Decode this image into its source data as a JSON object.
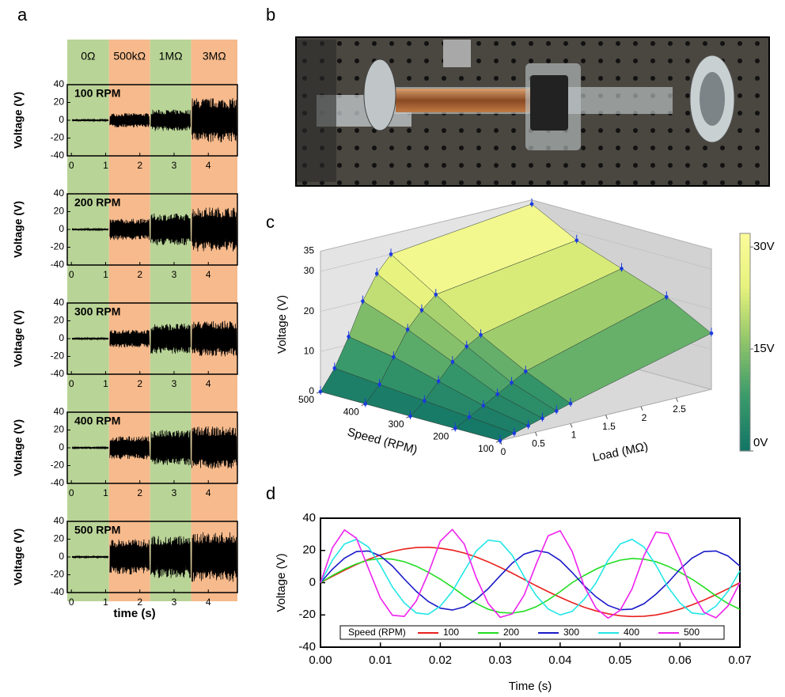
{
  "panel_labels": [
    "a",
    "b",
    "c",
    "d"
  ],
  "chart_data": [
    {
      "type": "signal-grid",
      "region_labels": [
        "0Ω",
        "500kΩ",
        "1MΩ",
        "3MΩ"
      ],
      "region_edges": [
        -0.12,
        1.1,
        2.3,
        3.5,
        4.85
      ],
      "xlim": [
        -0.12,
        4.85
      ],
      "xticks": [
        0,
        1,
        2,
        3,
        4
      ],
      "ylim": [
        -40,
        40
      ],
      "yticks": [
        -40,
        -20,
        0,
        20,
        40
      ],
      "ylabel": "Voltage (V)",
      "xlabel": "time (s)",
      "region_colors": [
        "#b9d497",
        "#f6ba8c"
      ],
      "rows": [
        {
          "label": "100 RPM",
          "values": [
            1,
            8,
            12,
            25
          ]
        },
        {
          "label": "200 RPM",
          "values": [
            1,
            12,
            18,
            25
          ]
        },
        {
          "label": "300 RPM",
          "values": [
            1,
            10,
            17,
            20
          ]
        },
        {
          "label": "400 RPM",
          "values": [
            1,
            13,
            20,
            24
          ]
        },
        {
          "label": "500 RPM",
          "values": [
            1,
            20,
            24,
            28
          ]
        }
      ]
    },
    {
      "type": "surface3d",
      "loads": [
        0,
        0.2,
        0.4,
        0.6,
        0.8,
        1,
        3
      ],
      "speeds": [
        100,
        200,
        300,
        400,
        500
      ],
      "values": [
        [
          0,
          1,
          2,
          3,
          4,
          5,
          14
        ],
        [
          0,
          2,
          4,
          6,
          8,
          10,
          20
        ],
        [
          0,
          3,
          7,
          11,
          14,
          16,
          24
        ],
        [
          0,
          4,
          10,
          16,
          20,
          23,
          28
        ],
        [
          0,
          5,
          12,
          20,
          26,
          30,
          34
        ]
      ],
      "xlabel": "Load (MΩ)",
      "ylabel": "Speed (RPM)",
      "zlabel": "Voltage (V)",
      "xlim": [
        0,
        3
      ],
      "xticks": [
        0,
        0.5,
        1,
        1.5,
        2,
        2.5
      ],
      "ylim": [
        100,
        500
      ],
      "yticks": [
        100,
        200,
        300,
        400,
        500
      ],
      "zlim": [
        0,
        35
      ],
      "zticks": [
        0,
        10,
        20,
        30,
        35
      ],
      "point_color": "#1a3ae0",
      "colorbar": {
        "lim": [
          0,
          32
        ],
        "colors": [
          "#127566",
          "#3a9a6a",
          "#8fc46a",
          "#e6f27c",
          "#fbfb9a"
        ],
        "ticks": [
          {
            "value": 0,
            "label": "0V"
          },
          {
            "value": 15,
            "label": "15V"
          },
          {
            "value": 30,
            "label": "30V"
          }
        ]
      }
    },
    {
      "type": "line",
      "x": [
        0,
        0.002,
        0.004,
        0.006,
        0.008,
        0.01,
        0.012,
        0.014,
        0.016,
        0.018,
        0.02,
        0.022,
        0.024,
        0.026,
        0.028,
        0.03,
        0.032,
        0.034,
        0.036,
        0.038,
        0.04,
        0.042,
        0.044,
        0.046,
        0.048,
        0.05,
        0.052,
        0.054,
        0.056,
        0.058,
        0.06,
        0.062,
        0.064,
        0.066,
        0.068,
        0.07
      ],
      "series": [
        {
          "name": "100",
          "color": "#e8201e",
          "values": [
            0,
            3.9,
            7.7,
            11.3,
            14.5,
            17.2,
            19.4,
            20.9,
            21.8,
            22.0,
            21.4,
            20.2,
            18.4,
            15.9,
            12.9,
            9.5,
            5.9,
            2.0,
            -1.9,
            -5.6,
            -9.1,
            -12.3,
            -15.2,
            -17.5,
            -19.3,
            -20.5,
            -21.0,
            -20.8,
            -20.0,
            -18.5,
            -16.4,
            -13.8,
            -10.8,
            -7.4,
            -3.8,
            0
          ]
        },
        {
          "name": "200",
          "color": "#22dd22",
          "values": [
            0,
            4.4,
            8.4,
            11.7,
            14.0,
            15.0,
            14.6,
            13.0,
            10.2,
            6.5,
            2.2,
            -2.8,
            -8.2,
            -12.9,
            -16.5,
            -18.5,
            -18.9,
            -17.7,
            -14.9,
            -10.7,
            -5.6,
            0,
            4.4,
            8.4,
            11.7,
            14.0,
            15.0,
            14.6,
            13.0,
            10.2,
            6.5,
            2.2,
            -2.8,
            -8.2,
            -12.9,
            -16.5
          ]
        },
        {
          "name": "300",
          "color": "#1a1ac8",
          "values": [
            0,
            8.4,
            15.2,
            19.3,
            19.7,
            16.6,
            10.3,
            2.2,
            -5.4,
            -11.7,
            -15.8,
            -17.0,
            -15.0,
            -10.3,
            -3.7,
            4.3,
            12.1,
            17.7,
            20.0,
            18.6,
            13.8,
            6.4,
            -1.8,
            -8.8,
            -14.1,
            -16.8,
            -16.4,
            -13.0,
            -7.1,
            0,
            8.4,
            15.2,
            19.3,
            19.7,
            16.6,
            10.3
          ]
        },
        {
          "name": "400",
          "color": "#22e6e6",
          "values": [
            0,
            14.0,
            24.0,
            26.9,
            22.1,
            10.8,
            -2.7,
            -12.6,
            -18.8,
            -19.6,
            -14.6,
            -5.4,
            7.3,
            19.7,
            26.4,
            25.4,
            17.0,
            3.7,
            -8.0,
            -16.3,
            -20.0,
            -17.8,
            -10.4,
            0,
            14.0,
            24.0,
            26.9,
            22.1,
            10.8,
            -2.7,
            -12.6,
            -18.8,
            -19.6,
            -14.6,
            -5.4,
            7.3
          ]
        },
        {
          "name": "500",
          "color": "#ee22ee",
          "values": [
            0,
            21.7,
            32.7,
            27.6,
            8.8,
            -9.5,
            -20.2,
            -20.9,
            -11.3,
            5.9,
            25.8,
            33.0,
            23.9,
            3.0,
            -12.9,
            -21.5,
            -19.4,
            -7.7,
            11.6,
            29.1,
            32.2,
            19.4,
            -2.0,
            -15.9,
            -22.0,
            -17.2,
            -3.9,
            16.9,
            31.4,
            30.4,
            14.3,
            -5.9,
            -18.4,
            -21.8,
            -14.5,
            0
          ]
        }
      ],
      "xlim": [
        0,
        0.07
      ],
      "xticks": [
        {
          "value": 0,
          "label": "0.00"
        },
        {
          "value": 0.01,
          "label": "0.01"
        },
        {
          "value": 0.02,
          "label": "0.02"
        },
        {
          "value": 0.03,
          "label": "0.03"
        },
        {
          "value": 0.04,
          "label": "0.04"
        },
        {
          "value": 0.05,
          "label": "0.05"
        },
        {
          "value": 0.06,
          "label": "0.06"
        },
        {
          "value": 0.07,
          "label": "0.07"
        }
      ],
      "ylim": [
        -40,
        40
      ],
      "yticks": [
        -40,
        -20,
        0,
        20,
        40
      ],
      "xlabel": "Time (s)",
      "ylabel": "Voltage (V)",
      "legend_title": "Speed (RPM)",
      "legend": "bottom"
    }
  ]
}
